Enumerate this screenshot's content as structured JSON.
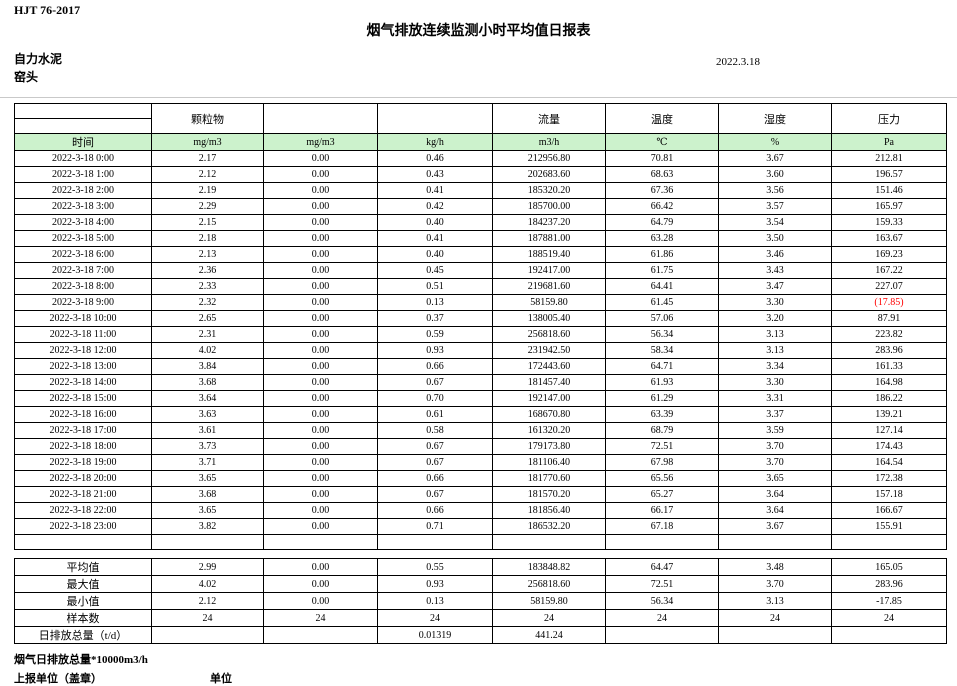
{
  "page": {
    "doc_code": "HJT  76-2017",
    "title": "烟气排放连续监测小时平均值日报表",
    "company": "自力水泥",
    "station": "窑头",
    "date": "2022.3.18"
  },
  "colors": {
    "header_green": "#ccf2cc",
    "negative_red": "#ff0000",
    "border_black": "#000000"
  },
  "table": {
    "group_headers": [
      "",
      "颗粒物",
      "",
      "",
      "流量",
      "温度",
      "湿度",
      "压力"
    ],
    "unit_row": [
      "时间",
      "mg/m3",
      "mg/m3",
      "kg/h",
      "m3/h",
      "℃",
      "%",
      "Pa"
    ],
    "rows": [
      [
        "2022-3-18 0:00",
        "2.17",
        "0.00",
        "0.46",
        "212956.80",
        "70.81",
        "3.67",
        "212.81"
      ],
      [
        "2022-3-18 1:00",
        "2.12",
        "0.00",
        "0.43",
        "202683.60",
        "68.63",
        "3.60",
        "196.57"
      ],
      [
        "2022-3-18 2:00",
        "2.19",
        "0.00",
        "0.41",
        "185320.20",
        "67.36",
        "3.56",
        "151.46"
      ],
      [
        "2022-3-18 3:00",
        "2.29",
        "0.00",
        "0.42",
        "185700.00",
        "66.42",
        "3.57",
        "165.97"
      ],
      [
        "2022-3-18 4:00",
        "2.15",
        "0.00",
        "0.40",
        "184237.20",
        "64.79",
        "3.54",
        "159.33"
      ],
      [
        "2022-3-18 5:00",
        "2.18",
        "0.00",
        "0.41",
        "187881.00",
        "63.28",
        "3.50",
        "163.67"
      ],
      [
        "2022-3-18 6:00",
        "2.13",
        "0.00",
        "0.40",
        "188519.40",
        "61.86",
        "3.46",
        "169.23"
      ],
      [
        "2022-3-18 7:00",
        "2.36",
        "0.00",
        "0.45",
        "192417.00",
        "61.75",
        "3.43",
        "167.22"
      ],
      [
        "2022-3-18 8:00",
        "2.33",
        "0.00",
        "0.51",
        "219681.60",
        "64.41",
        "3.47",
        "227.07"
      ],
      [
        "2022-3-18 9:00",
        "2.32",
        "0.00",
        "0.13",
        "58159.80",
        "61.45",
        "3.30",
        "(17.85)"
      ],
      [
        "2022-3-18 10:00",
        "2.65",
        "0.00",
        "0.37",
        "138005.40",
        "57.06",
        "3.20",
        "87.91"
      ],
      [
        "2022-3-18 11:00",
        "2.31",
        "0.00",
        "0.59",
        "256818.60",
        "56.34",
        "3.13",
        "223.82"
      ],
      [
        "2022-3-18 12:00",
        "4.02",
        "0.00",
        "0.93",
        "231942.50",
        "58.34",
        "3.13",
        "283.96"
      ],
      [
        "2022-3-18 13:00",
        "3.84",
        "0.00",
        "0.66",
        "172443.60",
        "64.71",
        "3.34",
        "161.33"
      ],
      [
        "2022-3-18 14:00",
        "3.68",
        "0.00",
        "0.67",
        "181457.40",
        "61.93",
        "3.30",
        "164.98"
      ],
      [
        "2022-3-18 15:00",
        "3.64",
        "0.00",
        "0.70",
        "192147.00",
        "61.29",
        "3.31",
        "186.22"
      ],
      [
        "2022-3-18 16:00",
        "3.63",
        "0.00",
        "0.61",
        "168670.80",
        "63.39",
        "3.37",
        "139.21"
      ],
      [
        "2022-3-18 17:00",
        "3.61",
        "0.00",
        "0.58",
        "161320.20",
        "68.79",
        "3.59",
        "127.14"
      ],
      [
        "2022-3-18 18:00",
        "3.73",
        "0.00",
        "0.67",
        "179173.80",
        "72.51",
        "3.70",
        "174.43"
      ],
      [
        "2022-3-18 19:00",
        "3.71",
        "0.00",
        "0.67",
        "181106.40",
        "67.98",
        "3.70",
        "164.54"
      ],
      [
        "2022-3-18 20:00",
        "3.65",
        "0.00",
        "0.66",
        "181770.60",
        "65.56",
        "3.65",
        "172.38"
      ],
      [
        "2022-3-18 21:00",
        "3.68",
        "0.00",
        "0.67",
        "181570.20",
        "65.27",
        "3.64",
        "157.18"
      ],
      [
        "2022-3-18 22:00",
        "3.65",
        "0.00",
        "0.66",
        "181856.40",
        "66.17",
        "3.64",
        "166.67"
      ],
      [
        "2022-3-18 23:00",
        "3.82",
        "0.00",
        "0.71",
        "186532.20",
        "67.18",
        "3.67",
        "155.91"
      ]
    ],
    "summary_rows": [
      [
        "平均值",
        "2.99",
        "0.00",
        "0.55",
        "183848.82",
        "64.47",
        "3.48",
        "165.05"
      ],
      [
        "最大值",
        "4.02",
        "0.00",
        "0.93",
        "256818.60",
        "72.51",
        "3.70",
        "283.96"
      ],
      [
        "最小值",
        "2.12",
        "0.00",
        "0.13",
        "58159.80",
        "56.34",
        "3.13",
        "-17.85"
      ],
      [
        "样本数",
        "24",
        "24",
        "24",
        "24",
        "24",
        "24",
        "24"
      ],
      [
        "日排放总量（t/d）",
        "",
        "",
        "0.01319",
        "441.24",
        "",
        "",
        ""
      ]
    ]
  },
  "footer": {
    "note1": "烟气日排放总量*10000m3/h",
    "note2": "上报单位（盖章）",
    "unit_label": "单位"
  }
}
